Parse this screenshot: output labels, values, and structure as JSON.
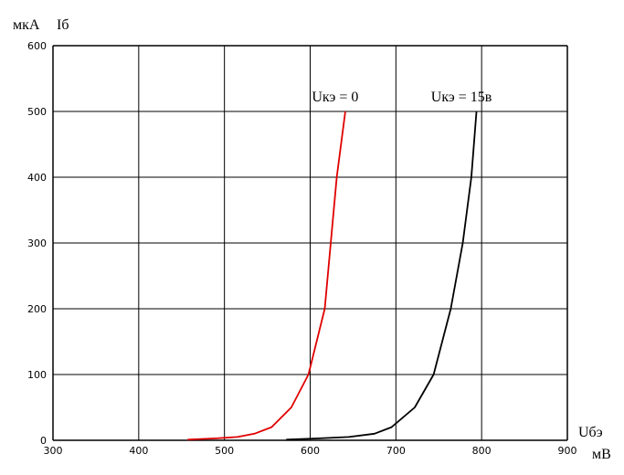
{
  "chart_data": {
    "type": "line",
    "xlim": [
      300,
      900
    ],
    "ylim": [
      0,
      600
    ],
    "xticks": [
      300,
      400,
      500,
      600,
      700,
      800,
      900
    ],
    "yticks": [
      0,
      100,
      200,
      300,
      400,
      500,
      600
    ],
    "grid": true,
    "x_title": "Uбэ",
    "x_unit": "мВ",
    "y_title": "Iб",
    "y_unit": "мкА",
    "series": [
      {
        "name": "Uкэ = 0",
        "color": "#e00000",
        "x": [
          457,
          490,
          515,
          535,
          555,
          578,
          598,
          617,
          631,
          641
        ],
        "y": [
          1,
          3,
          5,
          10,
          20,
          50,
          100,
          200,
          400,
          500
        ],
        "label_at": [
          602,
          515
        ]
      },
      {
        "name": "Uкэ = 15в",
        "color": "#000000",
        "x": [
          572,
          610,
          645,
          675,
          695,
          722,
          744,
          764,
          778,
          788,
          794
        ],
        "y": [
          1,
          3,
          5,
          10,
          20,
          50,
          100,
          200,
          300,
          400,
          500
        ],
        "label_at": [
          741,
          515
        ]
      }
    ]
  }
}
